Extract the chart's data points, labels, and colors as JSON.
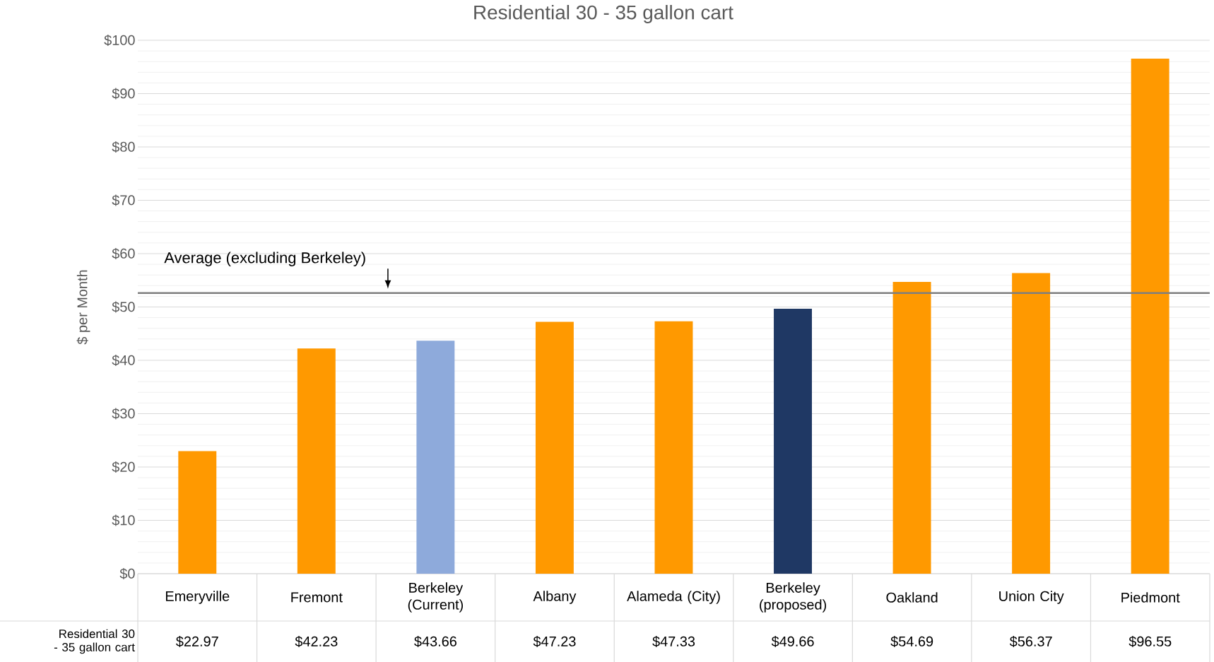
{
  "chart_data": {
    "type": "bar",
    "title": "Residential 30 - 35 gallon cart",
    "ylabel": "$ per Month",
    "categories": [
      "Emeryville",
      "Fremont",
      "Berkeley (Current)",
      "Albany",
      "Alameda (City)",
      "Berkeley (proposed)",
      "Oakland",
      "Union City",
      "Piedmont"
    ],
    "annotations": [
      "Residential 30 - 35 gallon cart"
    ],
    "series": [
      {
        "values": [
          22.97,
          42.23,
          43.66,
          47.23,
          47.33,
          49.66,
          54.69,
          56.37,
          96.55
        ],
        "colors": [
          "#ff9900",
          "#ff9900",
          "#8eaadb",
          "#ff9900",
          "#ff9900",
          "#1f3864",
          "#ff9900",
          "#ff9900",
          "#ff9900"
        ]
      }
    ],
    "value_labels": [
      "$22.97",
      "$42.23",
      "$43.66",
      "$47.23",
      "$47.33",
      "$49.66",
      "$54.69",
      "$56.37",
      "$96.55"
    ],
    "ylim": [
      0,
      100
    ],
    "yticks": [
      {
        "value": 0,
        "label": "$0"
      },
      {
        "value": 10,
        "label": "$10"
      },
      {
        "value": 20,
        "label": "$20"
      },
      {
        "value": 30,
        "label": "$30"
      },
      {
        "value": 40,
        "label": "$40"
      },
      {
        "value": 50,
        "label": "$50"
      },
      {
        "value": 60,
        "label": "$60"
      },
      {
        "value": 70,
        "label": "$70"
      },
      {
        "value": 80,
        "label": "$80"
      },
      {
        "value": 90,
        "label": "$90"
      },
      {
        "value": 100,
        "label": "$100"
      }
    ],
    "grid": "y",
    "ref_lines": [
      {
        "axis": "y",
        "value": 52.6,
        "label": "Average (excluding Berkeley)",
        "color": "#7f7f7f"
      }
    ]
  }
}
